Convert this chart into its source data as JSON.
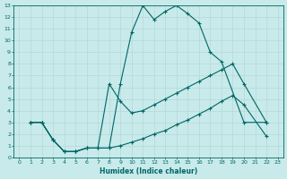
{
  "xlabel": "Humidex (Indice chaleur)",
  "bg_color": "#c8eaea",
  "line_color": "#006666",
  "grid_color": "#b0d4d4",
  "xlim": [
    -0.5,
    23.5
  ],
  "ylim": [
    0,
    13
  ],
  "xticks": [
    0,
    1,
    2,
    3,
    4,
    5,
    6,
    7,
    8,
    9,
    10,
    11,
    12,
    13,
    14,
    15,
    16,
    17,
    18,
    19,
    20,
    21,
    22,
    23
  ],
  "yticks": [
    0,
    1,
    2,
    3,
    4,
    5,
    6,
    7,
    8,
    9,
    10,
    11,
    12,
    13
  ],
  "line1_x": [
    1,
    2,
    3,
    4,
    5,
    6,
    7,
    8,
    9,
    10,
    11,
    12,
    13,
    14,
    15,
    16,
    17,
    18,
    20,
    22
  ],
  "line1_y": [
    3,
    3,
    1.5,
    0.5,
    0.5,
    0.8,
    0.8,
    0.8,
    6.3,
    10.7,
    13.0,
    11.8,
    12.5,
    13.0,
    12.3,
    11.5,
    9.0,
    8.2,
    3.0,
    3.0
  ],
  "line2_x": [
    1,
    2,
    3,
    4,
    5,
    6,
    7,
    8,
    9,
    10,
    11,
    12,
    13,
    14,
    15,
    16,
    17,
    18,
    19,
    20,
    22
  ],
  "line2_y": [
    3.0,
    3.0,
    1.5,
    0.5,
    0.5,
    0.8,
    0.8,
    6.3,
    4.8,
    3.8,
    4.0,
    4.5,
    5.0,
    5.5,
    6.0,
    6.5,
    7.0,
    7.5,
    8.0,
    6.3,
    3.0
  ],
  "line3_x": [
    1,
    2,
    3,
    4,
    5,
    6,
    7,
    8,
    9,
    10,
    11,
    12,
    13,
    14,
    15,
    16,
    17,
    18,
    19,
    20,
    22
  ],
  "line3_y": [
    3.0,
    3.0,
    1.5,
    0.5,
    0.5,
    0.8,
    0.8,
    0.8,
    1.0,
    1.3,
    1.6,
    2.0,
    2.3,
    2.8,
    3.2,
    3.7,
    4.2,
    4.8,
    5.3,
    4.5,
    1.8
  ]
}
